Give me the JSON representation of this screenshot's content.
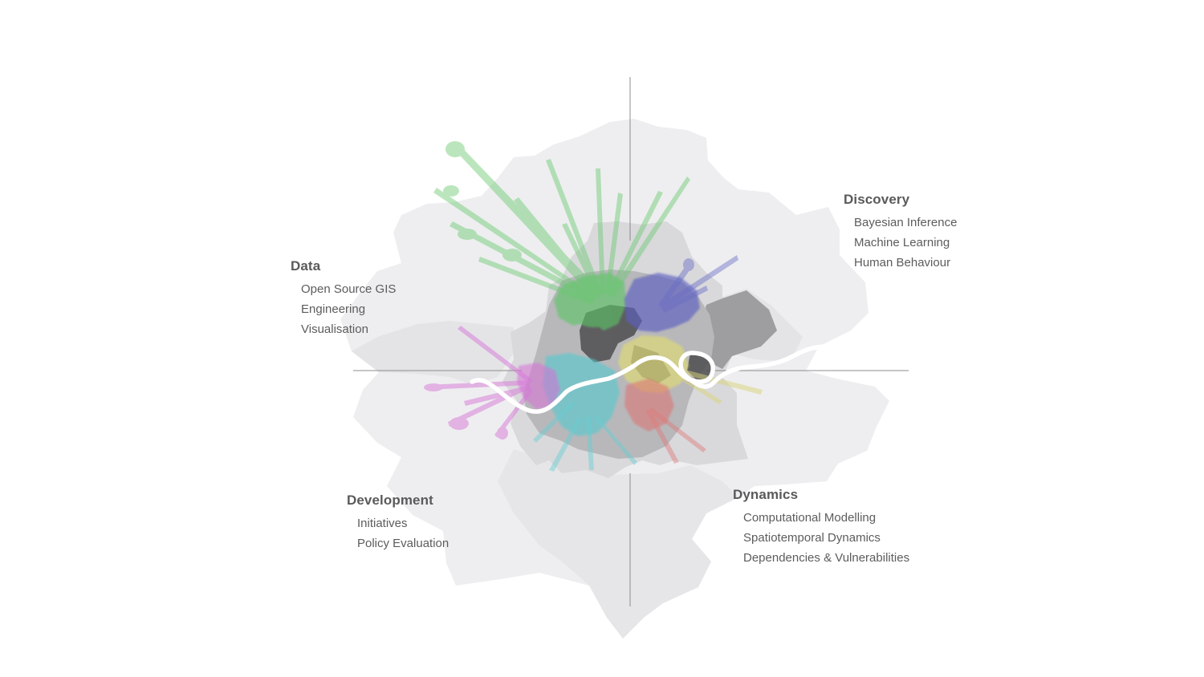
{
  "quadrants": {
    "data": {
      "title": "Data",
      "items": [
        "Open Source GIS",
        "Engineering",
        "Visualisation"
      ]
    },
    "discovery": {
      "title": "Discovery",
      "items": [
        "Bayesian Inference",
        "Machine Learning",
        "Human Behaviour"
      ]
    },
    "development": {
      "title": "Development",
      "items": [
        "Initiatives",
        "Policy Evaluation"
      ]
    },
    "dynamics": {
      "title": "Dynamics",
      "items": [
        "Computational Modelling",
        "Spatiotemporal Dynamics",
        "Dependencies & Vulnerabilities"
      ]
    }
  },
  "colors": {
    "outer_borough": "#ececef",
    "middle_borough": "#d7d7da",
    "inner_borough": "#b3b3b6",
    "core": "#555555",
    "river": "#ffffff",
    "axis": "#8a8a8a",
    "green": "#5cc465",
    "blue": "#5c5fc0",
    "yellow": "#ddd878",
    "red": "#de7070",
    "cyan": "#5cc8cc",
    "magenta": "#d870d8"
  }
}
